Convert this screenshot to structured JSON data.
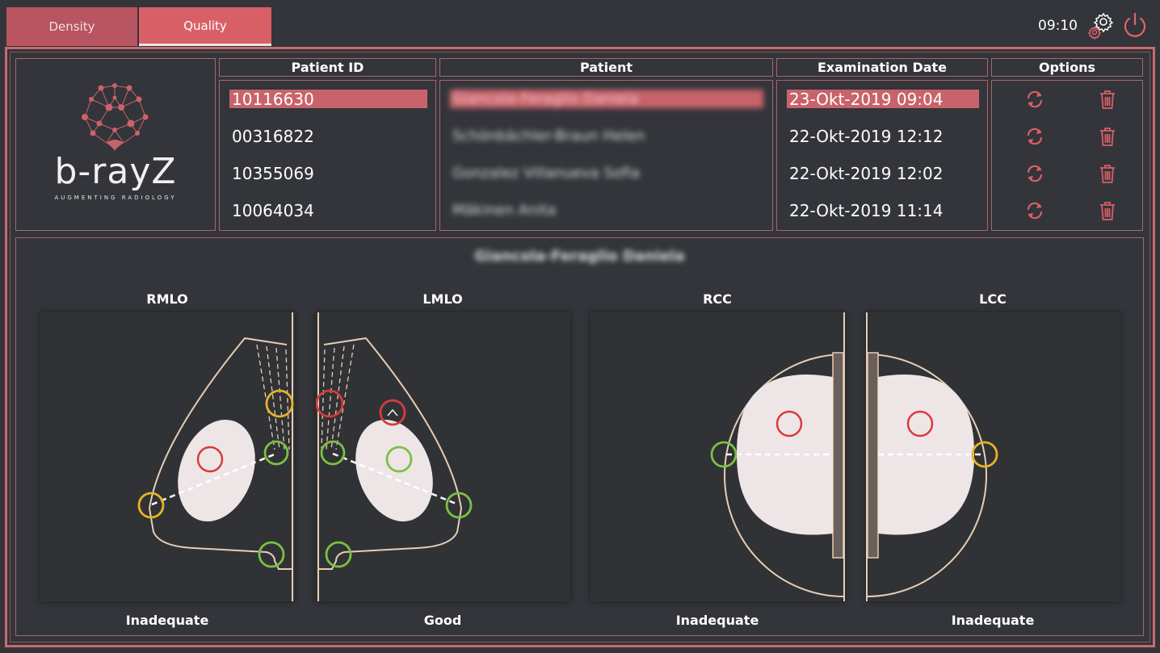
{
  "tabs": [
    {
      "label": "Density",
      "active": false
    },
    {
      "label": "Quality",
      "active": true
    }
  ],
  "header": {
    "time": "09:10"
  },
  "logo": {
    "name": "b-rayZ",
    "tagline": "AUGMENTING RADIOLOGY"
  },
  "table": {
    "columns": [
      "Patient ID",
      "Patient",
      "Examination Date",
      "Options"
    ],
    "rows": [
      {
        "id": "10116630",
        "patient": "Giancola-Feraglio Daniela",
        "date": "23-Okt-2019  09:04",
        "selected": true
      },
      {
        "id": "00316822",
        "patient": "Schönbächler-Braun Helen",
        "date": "22-Okt-2019  12:12",
        "selected": false
      },
      {
        "id": "10355069",
        "patient": "Gonzalez Villanueva Sofia",
        "date": "22-Okt-2019  12:02",
        "selected": false
      },
      {
        "id": "10064034",
        "patient": "Mäkinen Anita",
        "date": "22-Okt-2019  11:14",
        "selected": false
      }
    ]
  },
  "detail": {
    "patient_name": "Giancola-Feraglio Daniela",
    "views": [
      {
        "label": "RMLO",
        "verdict": "Inadequate"
      },
      {
        "label": "LMLO",
        "verdict": "Good"
      },
      {
        "label": "RCC",
        "verdict": "Inadequate"
      },
      {
        "label": "LCC",
        "verdict": "Inadequate"
      }
    ]
  },
  "colors": {
    "accent": "#d95f66",
    "frame": "#c86a72",
    "background": "#33353a",
    "breast_outline": "#e8cdb4",
    "marker_red": "#d83b3b",
    "marker_green": "#7cc043",
    "marker_yellow": "#e8b425"
  },
  "icons": [
    "gear-icon",
    "power-icon",
    "refresh-icon",
    "trash-icon"
  ]
}
